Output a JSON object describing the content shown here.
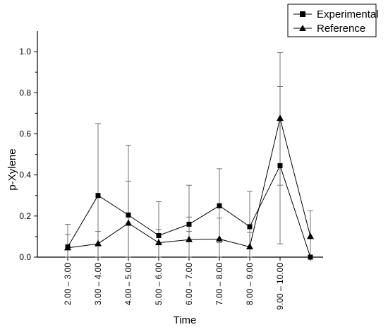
{
  "chart_data": {
    "type": "line",
    "xlabel": "Time",
    "ylabel": "p-Xylene",
    "ylim": [
      0,
      1.1
    ],
    "yticks": [
      "0.0",
      "0.2",
      "0.4",
      "0.6",
      "0.8",
      "1.0"
    ],
    "categories": [
      "2.00 – 3.00",
      "3.00 – 4.00",
      "4.00 – 5.00",
      "5.00 – 6.00",
      "6.00 – 7.00",
      "7.00 – 8.00",
      "8.00 – 9.00",
      "9.00 – 10.00",
      ""
    ],
    "grid": false,
    "legend_position": "top-right",
    "series": [
      {
        "name": "Experimental",
        "marker": "square",
        "values": [
          0.05,
          0.3,
          0.205,
          0.105,
          0.16,
          0.25,
          0.148,
          0.445,
          0.0
        ],
        "err_low": [
          0.0,
          0.0,
          0.0,
          0.0,
          0.125,
          0.07,
          0.0,
          0.065,
          0.0
        ],
        "err_high": [
          0.16,
          0.65,
          0.545,
          0.27,
          0.35,
          0.43,
          0.32,
          0.83,
          0.0
        ]
      },
      {
        "name": "Reference",
        "marker": "triangle",
        "values": [
          0.045,
          0.065,
          0.165,
          0.07,
          0.085,
          0.088,
          0.05,
          0.675,
          0.1
        ],
        "err_low": [
          0.0,
          0.0,
          0.0,
          0.0,
          0.0,
          0.0,
          0.0,
          0.35,
          0.0
        ],
        "err_high": [
          0.11,
          0.125,
          0.37,
          0.135,
          0.195,
          0.19,
          0.12,
          0.995,
          0.225
        ]
      }
    ]
  }
}
